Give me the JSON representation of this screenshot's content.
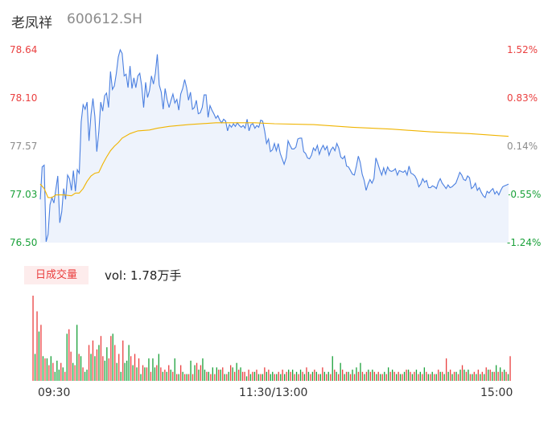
{
  "header": {
    "name": "老凤祥",
    "code": "600612.SH"
  },
  "volume_panel": {
    "tab_label": "日成交量",
    "vol_text": "vol: 1.78万手"
  },
  "colors": {
    "price_line": "#4a7fe0",
    "avg_line": "#f0b400",
    "up": "#ea3f3f",
    "down": "#1aa13a",
    "neutral": "#8c8c8c",
    "area_fill": "#eef3fc"
  },
  "chart_data": {
    "type": "line",
    "title": "",
    "price_ticks": [
      {
        "label": "78.64",
        "value": 78.64,
        "pct": "1.52%",
        "dir": "up"
      },
      {
        "label": "78.10",
        "value": 78.1,
        "pct": "0.83%",
        "dir": "up"
      },
      {
        "label": "77.57",
        "value": 77.57,
        "pct": "0.14%",
        "dir": "flat"
      },
      {
        "label": "77.03",
        "value": 77.03,
        "pct": "-0.55%",
        "dir": "down"
      },
      {
        "label": "76.50",
        "value": 76.5,
        "pct": "-1.24%",
        "dir": "down"
      }
    ],
    "ylim": [
      76.5,
      78.64
    ],
    "time_ticks": [
      "09:30",
      "11:30/13:00",
      "15:00"
    ],
    "x_range": [
      0,
      240
    ],
    "price": [
      [
        0,
        76.98
      ],
      [
        1,
        77.34
      ],
      [
        2,
        77.36
      ],
      [
        3,
        76.51
      ],
      [
        4,
        76.59
      ],
      [
        5,
        76.92
      ],
      [
        6,
        77.0
      ],
      [
        7,
        76.94
      ],
      [
        8,
        77.09
      ],
      [
        9,
        77.24
      ],
      [
        10,
        76.72
      ],
      [
        11,
        76.84
      ],
      [
        12,
        77.1
      ],
      [
        13,
        76.98
      ],
      [
        14,
        77.25
      ],
      [
        15,
        77.21
      ],
      [
        16,
        77.08
      ],
      [
        17,
        77.3
      ],
      [
        18,
        77.07
      ],
      [
        19,
        77.31
      ],
      [
        20,
        77.27
      ],
      [
        21,
        77.84
      ],
      [
        22,
        78.03
      ],
      [
        23,
        77.98
      ],
      [
        24,
        78.06
      ],
      [
        25,
        77.63
      ],
      [
        26,
        77.92
      ],
      [
        27,
        78.1
      ],
      [
        28,
        77.9
      ],
      [
        29,
        77.51
      ],
      [
        30,
        77.73
      ],
      [
        31,
        78.06
      ],
      [
        32,
        77.96
      ],
      [
        33,
        78.13
      ],
      [
        34,
        78.16
      ],
      [
        35,
        78.0
      ],
      [
        36,
        78.4
      ],
      [
        37,
        78.2
      ],
      [
        38,
        78.24
      ],
      [
        39,
        78.38
      ],
      [
        40,
        78.56
      ],
      [
        41,
        78.64
      ],
      [
        42,
        78.6
      ],
      [
        43,
        78.35
      ],
      [
        44,
        78.37
      ],
      [
        45,
        78.22
      ],
      [
        46,
        78.46
      ],
      [
        47,
        78.21
      ],
      [
        48,
        78.33
      ],
      [
        49,
        78.22
      ],
      [
        50,
        78.35
      ],
      [
        51,
        78.38
      ],
      [
        52,
        78.24
      ],
      [
        53,
        78.0
      ],
      [
        54,
        78.28
      ],
      [
        55,
        78.11
      ],
      [
        56,
        78.19
      ],
      [
        57,
        78.35
      ],
      [
        58,
        78.26
      ],
      [
        59,
        78.38
      ],
      [
        60,
        78.59
      ],
      [
        61,
        78.25
      ],
      [
        62,
        78.17
      ],
      [
        63,
        77.98
      ],
      [
        64,
        78.21
      ],
      [
        65,
        78.09
      ],
      [
        66,
        78.0
      ],
      [
        67,
        78.08
      ],
      [
        68,
        78.15
      ],
      [
        69,
        78.05
      ],
      [
        70,
        78.09
      ],
      [
        71,
        77.97
      ],
      [
        72,
        78.15
      ],
      [
        73,
        78.21
      ],
      [
        74,
        78.31
      ],
      [
        75,
        78.22
      ],
      [
        76,
        78.08
      ],
      [
        77,
        78.17
      ],
      [
        78,
        77.98
      ],
      [
        79,
        78.0
      ],
      [
        80,
        78.08
      ],
      [
        81,
        77.93
      ],
      [
        82,
        77.94
      ],
      [
        83,
        78.0
      ],
      [
        84,
        78.14
      ],
      [
        85,
        78.14
      ],
      [
        86,
        77.89
      ],
      [
        87,
        78.02
      ],
      [
        88,
        77.97
      ],
      [
        89,
        77.93
      ],
      [
        90,
        77.88
      ],
      [
        91,
        77.91
      ],
      [
        92,
        77.86
      ],
      [
        93,
        77.83
      ],
      [
        94,
        77.87
      ],
      [
        95,
        77.85
      ],
      [
        96,
        77.74
      ],
      [
        97,
        77.81
      ],
      [
        98,
        77.78
      ],
      [
        99,
        77.82
      ],
      [
        100,
        77.79
      ],
      [
        101,
        77.83
      ],
      [
        102,
        77.8
      ],
      [
        103,
        77.78
      ],
      [
        104,
        77.8
      ],
      [
        105,
        77.77
      ],
      [
        106,
        77.87
      ],
      [
        107,
        77.74
      ],
      [
        108,
        77.81
      ],
      [
        109,
        77.82
      ],
      [
        110,
        77.77
      ],
      [
        111,
        77.8
      ],
      [
        112,
        77.78
      ],
      [
        113,
        77.86
      ],
      [
        114,
        77.85
      ],
      [
        115,
        77.74
      ],
      [
        116,
        77.6
      ],
      [
        117,
        77.65
      ],
      [
        118,
        77.51
      ],
      [
        119,
        77.53
      ],
      [
        120,
        77.6
      ],
      [
        121,
        77.52
      ],
      [
        122,
        77.6
      ],
      [
        123,
        77.49
      ],
      [
        124,
        77.43
      ],
      [
        125,
        77.37
      ],
      [
        126,
        77.44
      ],
      [
        127,
        77.63
      ],
      [
        128,
        77.58
      ],
      [
        129,
        77.54
      ],
      [
        130,
        77.54
      ],
      [
        131,
        77.56
      ],
      [
        132,
        77.65
      ],
      [
        133,
        77.66
      ],
      [
        134,
        77.66
      ],
      [
        135,
        77.51
      ],
      [
        136,
        77.49
      ],
      [
        137,
        77.44
      ],
      [
        138,
        77.43
      ],
      [
        139,
        77.47
      ],
      [
        140,
        77.55
      ],
      [
        141,
        77.52
      ],
      [
        142,
        77.58
      ],
      [
        143,
        77.48
      ],
      [
        144,
        77.54
      ],
      [
        145,
        77.58
      ],
      [
        146,
        77.53
      ],
      [
        147,
        77.57
      ],
      [
        148,
        77.47
      ],
      [
        149,
        77.53
      ],
      [
        150,
        77.56
      ],
      [
        151,
        77.52
      ],
      [
        152,
        77.6
      ],
      [
        153,
        77.55
      ],
      [
        154,
        77.45
      ],
      [
        155,
        77.43
      ],
      [
        156,
        77.46
      ],
      [
        157,
        77.35
      ],
      [
        158,
        77.34
      ],
      [
        159,
        77.3
      ],
      [
        160,
        77.26
      ],
      [
        161,
        77.25
      ],
      [
        162,
        77.35
      ],
      [
        163,
        77.46
      ],
      [
        164,
        77.39
      ],
      [
        165,
        77.26
      ],
      [
        166,
        77.19
      ],
      [
        167,
        77.08
      ],
      [
        168,
        77.15
      ],
      [
        169,
        77.2
      ],
      [
        170,
        77.16
      ],
      [
        171,
        77.21
      ],
      [
        172,
        77.44
      ],
      [
        173,
        77.38
      ],
      [
        174,
        77.31
      ],
      [
        175,
        77.25
      ],
      [
        176,
        77.33
      ],
      [
        177,
        77.26
      ],
      [
        178,
        77.34
      ],
      [
        179,
        77.3
      ],
      [
        180,
        77.29
      ],
      [
        181,
        77.3
      ],
      [
        182,
        77.32
      ],
      [
        183,
        77.25
      ],
      [
        184,
        77.3
      ],
      [
        185,
        77.29
      ],
      [
        186,
        77.28
      ],
      [
        187,
        77.3
      ],
      [
        188,
        77.25
      ],
      [
        189,
        77.35
      ],
      [
        190,
        77.27
      ],
      [
        191,
        77.26
      ],
      [
        192,
        77.24
      ],
      [
        193,
        77.2
      ],
      [
        194,
        77.12
      ],
      [
        195,
        77.15
      ],
      [
        196,
        77.21
      ],
      [
        197,
        77.17
      ],
      [
        198,
        77.19
      ],
      [
        199,
        77.11
      ],
      [
        200,
        77.11
      ],
      [
        201,
        77.13
      ],
      [
        202,
        77.12
      ],
      [
        203,
        77.1
      ],
      [
        204,
        77.17
      ],
      [
        205,
        77.21
      ],
      [
        206,
        77.16
      ],
      [
        207,
        77.13
      ],
      [
        208,
        77.1
      ],
      [
        209,
        77.14
      ],
      [
        210,
        77.11
      ],
      [
        211,
        77.12
      ],
      [
        212,
        77.14
      ],
      [
        213,
        77.16
      ],
      [
        214,
        77.22
      ],
      [
        215,
        77.28
      ],
      [
        216,
        77.25
      ],
      [
        217,
        77.2
      ],
      [
        218,
        77.19
      ],
      [
        219,
        77.24
      ],
      [
        220,
        77.22
      ],
      [
        221,
        77.1
      ],
      [
        222,
        77.12
      ],
      [
        223,
        77.16
      ],
      [
        224,
        77.08
      ],
      [
        225,
        77.11
      ],
      [
        226,
        77.06
      ],
      [
        227,
        77.02
      ],
      [
        228,
        77.0
      ],
      [
        229,
        77.07
      ],
      [
        230,
        77.05
      ],
      [
        231,
        77.08
      ],
      [
        232,
        77.1
      ],
      [
        233,
        77.04
      ],
      [
        234,
        77.07
      ],
      [
        235,
        77.03
      ],
      [
        236,
        77.08
      ],
      [
        237,
        77.12
      ],
      [
        238,
        77.13
      ],
      [
        239,
        77.14
      ],
      [
        240,
        77.15
      ]
    ],
    "avg": [
      [
        0,
        77.15
      ],
      [
        2,
        77.1
      ],
      [
        4,
        77.0
      ],
      [
        6,
        77.0
      ],
      [
        8,
        77.03
      ],
      [
        12,
        77.03
      ],
      [
        16,
        77.02
      ],
      [
        18,
        77.05
      ],
      [
        20,
        77.05
      ],
      [
        22,
        77.1
      ],
      [
        24,
        77.18
      ],
      [
        26,
        77.24
      ],
      [
        28,
        77.27
      ],
      [
        30,
        77.28
      ],
      [
        32,
        77.37
      ],
      [
        34,
        77.45
      ],
      [
        36,
        77.52
      ],
      [
        38,
        77.57
      ],
      [
        40,
        77.61
      ],
      [
        42,
        77.66
      ],
      [
        46,
        77.71
      ],
      [
        50,
        77.74
      ],
      [
        56,
        77.75
      ],
      [
        60,
        77.77
      ],
      [
        66,
        77.79
      ],
      [
        76,
        77.81
      ],
      [
        90,
        77.83
      ],
      [
        100,
        77.83
      ],
      [
        110,
        77.83
      ],
      [
        120,
        77.82
      ],
      [
        140,
        77.81
      ],
      [
        160,
        77.78
      ],
      [
        180,
        77.76
      ],
      [
        200,
        77.73
      ],
      [
        220,
        77.71
      ],
      [
        240,
        77.68
      ]
    ],
    "volume": [
      38,
      12,
      31,
      22,
      25,
      11,
      10,
      10,
      7,
      11,
      8,
      4,
      9,
      5,
      8,
      6,
      4,
      21,
      23,
      13,
      8,
      7,
      25,
      12,
      11,
      6,
      4,
      5,
      16,
      12,
      18,
      11,
      14,
      16,
      20,
      11,
      9,
      15,
      10,
      20,
      21,
      16,
      8,
      12,
      4,
      18,
      8,
      9,
      16,
      11,
      7,
      12,
      6,
      10,
      3,
      7,
      6,
      6,
      10,
      4,
      10,
      6,
      7,
      12,
      6,
      4,
      5,
      4,
      7,
      5,
      4,
      10,
      3,
      3,
      7,
      4,
      3,
      3,
      3,
      9,
      3,
      7,
      8,
      5,
      7,
      10,
      5,
      4,
      4,
      3,
      6,
      3,
      6,
      5,
      5,
      6,
      3,
      3,
      4,
      7,
      6,
      4,
      8,
      5,
      6,
      4,
      4,
      2,
      5,
      3,
      4,
      4,
      5,
      3,
      3,
      3,
      6,
      4,
      5,
      3,
      4,
      3,
      3,
      4,
      3,
      5,
      3,
      4,
      5,
      4,
      5,
      3,
      4,
      3,
      5,
      4,
      3,
      6,
      4,
      3,
      4,
      5,
      4,
      3,
      3,
      6,
      4,
      3,
      4,
      3,
      11,
      5,
      4,
      3,
      8,
      5,
      3,
      4,
      4,
      3,
      5,
      3,
      6,
      4,
      8,
      4,
      3,
      4,
      5,
      4,
      5,
      4,
      3,
      4,
      3,
      3,
      4,
      3,
      6,
      4,
      5,
      4,
      3,
      4,
      3,
      3,
      4,
      5,
      5,
      4,
      3,
      4,
      5,
      3,
      4,
      3,
      6,
      4,
      3,
      3,
      4,
      3,
      3,
      5,
      4,
      4,
      3,
      10,
      4,
      5,
      3,
      4,
      4,
      3,
      5,
      7,
      5,
      4,
      5,
      3,
      3,
      4,
      3,
      5,
      3,
      4,
      3,
      6,
      5,
      5,
      4,
      4,
      7,
      4,
      6,
      4,
      5,
      4,
      3,
      11
    ],
    "volume_dir": "rdrdrgrgrgrdggrdrgrrgrgrgrggrgrgrgrrggrrgrgrgrgggrgrgrgrgrgrggrgrgrgrgrgrgrgrgrgrgrgrggrgrgrgrgrgrgrgrgrgrrgrgrgrgrgrgrggrgrgrgrgrgrgrgrgrgrgrgrgrgrgrgrgrgrgrgrgrgrgrgrgrgrgrgrgrgrgrgrgrgrgrgrgrgrgrgrgrgrgrgrgrgrgrgrgrgrgrgrgrgrgrgrgrgrgrgrgrg"
  }
}
